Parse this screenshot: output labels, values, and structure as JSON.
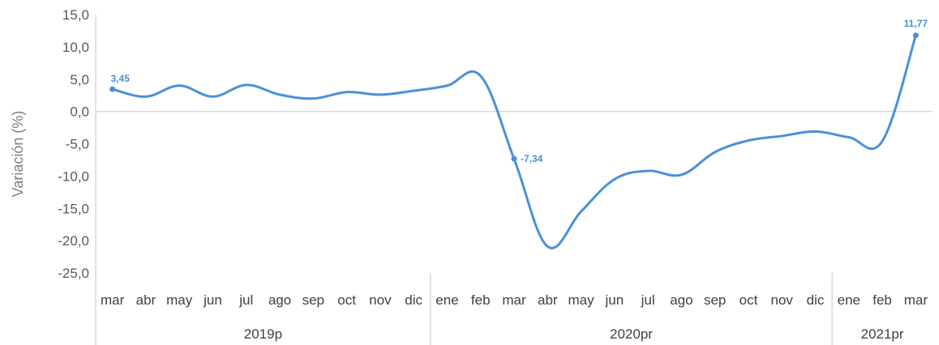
{
  "chart_data": {
    "type": "line",
    "ylabel": "Variación (%)",
    "ylim": [
      -25,
      15
    ],
    "yticks": [
      "15,0",
      "10,0",
      "5,0",
      "0,0",
      "-5,0",
      "-10,0",
      "-15,0",
      "-20,0",
      "-25,0"
    ],
    "ytick_values": [
      15,
      10,
      5,
      0,
      -5,
      -10,
      -15,
      -20,
      -25
    ],
    "categories": [
      "mar",
      "abr",
      "may",
      "jun",
      "jul",
      "ago",
      "sep",
      "oct",
      "nov",
      "dic",
      "ene",
      "feb",
      "mar",
      "abr",
      "may",
      "jun",
      "jul",
      "ago",
      "sep",
      "oct",
      "nov",
      "dic",
      "ene",
      "feb",
      "mar"
    ],
    "groups": [
      {
        "label": "2019p",
        "count": 10
      },
      {
        "label": "2020pr",
        "count": 12
      },
      {
        "label": "2021pr",
        "count": 3
      }
    ],
    "series": [
      {
        "color": "#4a90d9",
        "values": [
          3.45,
          2.3,
          4.0,
          2.3,
          4.1,
          2.6,
          2.0,
          3.0,
          2.6,
          3.2,
          4.0,
          5.5,
          -7.34,
          -20.9,
          -15.5,
          -10.5,
          -9.2,
          -9.8,
          -6.3,
          -4.5,
          -3.8,
          -3.1,
          -4.0,
          -4.6,
          11.77
        ]
      }
    ],
    "data_labels": [
      {
        "index": 0,
        "text": "3,45"
      },
      {
        "index": 12,
        "text": "-7,34"
      },
      {
        "index": 24,
        "text": "11,77"
      }
    ],
    "grid": false,
    "zero_line": true,
    "legend": "none"
  }
}
